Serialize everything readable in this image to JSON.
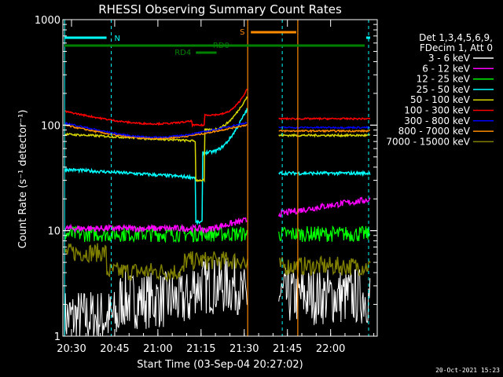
{
  "chart_data": {
    "type": "line",
    "title": "RHESSI Observing Summary Count Rates",
    "xlabel": "Start Time (03-Sep-04 20:27:02)",
    "ylabel": "Count Rate (s⁻¹ detector⁻¹)",
    "yscale": "log",
    "ylim": [
      1,
      1000
    ],
    "xlim_minutes": [
      20.45,
      22.27
    ],
    "x_tick_labels": [
      "20:30",
      "20:45",
      "21:00",
      "21:15",
      "21:30",
      "21:45",
      "22:00"
    ],
    "y_tick_labels": [
      "1",
      "10",
      "100",
      "1000"
    ],
    "legend_header": [
      "Det 1,3,4,5,6,9,",
      "FDecim 1, Att 0"
    ],
    "legend_placement": "right",
    "timestamp": "20-Oct-2021 15:23",
    "series": [
      {
        "name": "3 - 6 keV",
        "color": "#ffffff"
      },
      {
        "name": "6 - 12 keV",
        "color": "#ff00ff"
      },
      {
        "name": "12 - 25 keV",
        "color": "#00ff00"
      },
      {
        "name": "25 - 50 keV",
        "color": "#00ffff"
      },
      {
        "name": "50 - 100 keV",
        "color": "#d8d800"
      },
      {
        "name": "100 - 300 keV",
        "color": "#ff0000"
      },
      {
        "name": "300 - 800 keV",
        "color": "#0000ff"
      },
      {
        "name": "800 - 7000 keV",
        "color": "#ff8c00"
      },
      {
        "name": "7000 - 15000 keV",
        "color": "#808000"
      }
    ],
    "annotations": [
      {
        "label": "N",
        "color": "#00ffff"
      },
      {
        "label": "S",
        "color": "#ff8c00"
      },
      {
        "label": "RD0",
        "color": "#008000"
      },
      {
        "label": "RD4",
        "color": "#008000"
      }
    ]
  }
}
